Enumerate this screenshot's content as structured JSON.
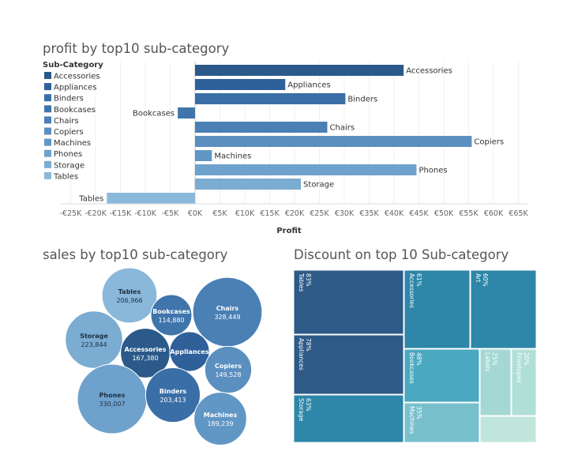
{
  "titles": {
    "profit": "profit by top10 sub-category",
    "sales": "sales by top10 sub-category",
    "discount": "Discount on top 10 Sub-category"
  },
  "chart_data": [
    {
      "type": "bar",
      "orientation": "horizontal",
      "title": "profit by top10 sub-category",
      "xlabel": "Profit",
      "ylabel": "",
      "legend_title": "Sub-Category",
      "legend_position": "left",
      "grid": true,
      "xlim": [
        -27000,
        67000
      ],
      "x_ticks": [
        "-€25K",
        "-€20K",
        "-€15K",
        "-€10K",
        "-€5K",
        "€0K",
        "€5K",
        "€10K",
        "€15K",
        "€20K",
        "€25K",
        "€30K",
        "€35K",
        "€40K",
        "€45K",
        "€50K",
        "€55K",
        "€60K",
        "€65K"
      ],
      "x_tick_values": [
        -25000,
        -20000,
        -15000,
        -10000,
        -5000,
        0,
        5000,
        10000,
        15000,
        20000,
        25000,
        30000,
        35000,
        40000,
        45000,
        50000,
        55000,
        60000,
        65000
      ],
      "categories": [
        "Accessories",
        "Appliances",
        "Binders",
        "Bookcases",
        "Chairs",
        "Copiers",
        "Machines",
        "Phones",
        "Storage",
        "Tables"
      ],
      "values": [
        41937,
        18138,
        30222,
        -3473,
        26590,
        55618,
        3385,
        44516,
        21279,
        -17725
      ],
      "colors": [
        "#2b5a8a",
        "#30609a",
        "#3a6ea6",
        "#3f75ab",
        "#4a80b4",
        "#5a8fc0",
        "#6197c5",
        "#6ea2cc",
        "#7bacd2",
        "#8ab8da"
      ]
    },
    {
      "type": "bubble",
      "title": "sales by top10 sub-category",
      "items": [
        {
          "name": "Tables",
          "label": "206,966",
          "value": 206966,
          "color": "#8ab8da",
          "text": "#1e2f44"
        },
        {
          "name": "Bookcases",
          "label": "114,880",
          "value": 114880,
          "color": "#3f75ab",
          "text": "#ffffff"
        },
        {
          "name": "Chairs",
          "label": "328,449",
          "value": 328449,
          "color": "#4a80b4",
          "text": "#ffffff"
        },
        {
          "name": "Storage",
          "label": "223,844",
          "value": 223844,
          "color": "#7bacd2",
          "text": "#1e2f44"
        },
        {
          "name": "Accessories",
          "label": "167,380",
          "value": 167380,
          "color": "#2b5a8a",
          "text": "#ffffff"
        },
        {
          "name": "Appliances",
          "label": "",
          "value": 107532,
          "color": "#30609a",
          "text": "#ffffff"
        },
        {
          "name": "Copiers",
          "label": "149,528",
          "value": 149528,
          "color": "#5a8fc0",
          "text": "#ffffff"
        },
        {
          "name": "Phones",
          "label": "330,007",
          "value": 330007,
          "color": "#6ea2cc",
          "text": "#1e2f44"
        },
        {
          "name": "Binders",
          "label": "203,413",
          "value": 203413,
          "color": "#3a6ea6",
          "text": "#ffffff"
        },
        {
          "name": "Machines",
          "label": "189,239",
          "value": 189239,
          "color": "#6197c5",
          "text": "#ffffff"
        }
      ]
    },
    {
      "type": "treemap",
      "title": "Discount on top 10 Sub-category",
      "items": [
        {
          "name": "Tables",
          "label": "83%",
          "value": 83,
          "color": "#2e5a88"
        },
        {
          "name": "Appliances",
          "label": "78%",
          "value": 78,
          "color": "#2e5a88"
        },
        {
          "name": "Storage",
          "label": "63%",
          "value": 63,
          "color": "#2e86a8"
        },
        {
          "name": "Accessories",
          "label": "61%",
          "value": 61,
          "color": "#2e86a8"
        },
        {
          "name": "Art",
          "label": "60%",
          "value": 60,
          "color": "#2e86a8"
        },
        {
          "name": "Bookcases",
          "label": "48%",
          "value": 48,
          "color": "#4aa8c0"
        },
        {
          "name": "Machines",
          "label": "35%",
          "value": 35,
          "color": "#78c0cc"
        },
        {
          "name": "Labels",
          "label": "25%",
          "value": 25,
          "color": "#a4d8d4"
        },
        {
          "name": "Envelopes",
          "label": "20%",
          "value": 20,
          "color": "#b0dfd8"
        },
        {
          "name": "",
          "label": "",
          "value": 12,
          "color": "#c0e6dc"
        }
      ]
    }
  ]
}
